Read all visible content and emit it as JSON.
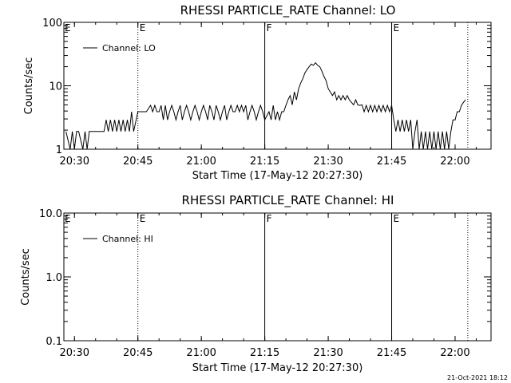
{
  "footer": {
    "timestamp": "21-Oct-2021 18:12"
  },
  "chart_data": [
    {
      "type": "line",
      "title": "RHESSI PARTICLE_RATE Channel: LO",
      "xlabel": "Start Time (17-May-12 20:27:30)",
      "ylabel": "Counts/sec",
      "yscale": "log",
      "xlim": [
        "20:27:30",
        "22:08:30"
      ],
      "ylim": [
        1,
        100
      ],
      "x_ticks": [
        "20:30",
        "20:45",
        "21:00",
        "21:15",
        "21:30",
        "21:45",
        "22:00"
      ],
      "y_ticks": [
        "1",
        "10",
        "100"
      ],
      "legend": {
        "position": "top-left",
        "entries": [
          "Channel: LO"
        ]
      },
      "event_markers": [
        {
          "time": "20:45",
          "label": "E",
          "style": "dotted"
        },
        {
          "time": "21:15",
          "label": "F",
          "style": "solid"
        },
        {
          "time": "21:45",
          "label": "E",
          "style": "solid"
        },
        {
          "time": "22:03",
          "label": "",
          "style": "dotted"
        }
      ],
      "series": [
        {
          "name": "Channel: LO",
          "points": [
            [
              "20:28",
              1.9
            ],
            [
              "20:29",
              1.0
            ],
            [
              "20:29:30",
              1.9
            ],
            [
              "20:30",
              1.0
            ],
            [
              "20:30:30",
              1.9
            ],
            [
              "20:31",
              1.9
            ],
            [
              "20:32",
              1.0
            ],
            [
              "20:32:30",
              1.9
            ],
            [
              "20:33",
              1.0
            ],
            [
              "20:33:30",
              1.9
            ],
            [
              "20:35",
              1.9
            ],
            [
              "20:37",
              1.9
            ],
            [
              "20:37:30",
              2.9
            ],
            [
              "20:38",
              1.9
            ],
            [
              "20:38:30",
              2.9
            ],
            [
              "20:39",
              1.9
            ],
            [
              "20:39:30",
              2.9
            ],
            [
              "20:40",
              1.9
            ],
            [
              "20:40:30",
              2.9
            ],
            [
              "20:41",
              1.9
            ],
            [
              "20:41:30",
              2.9
            ],
            [
              "20:42",
              1.9
            ],
            [
              "20:42:30",
              2.9
            ],
            [
              "20:43",
              1.9
            ],
            [
              "20:43:30",
              3.9
            ],
            [
              "20:44",
              1.9
            ],
            [
              "20:45",
              3.9
            ],
            [
              "20:47",
              3.9
            ],
            [
              "20:48",
              4.9
            ],
            [
              "20:48:30",
              3.9
            ],
            [
              "20:49",
              4.9
            ],
            [
              "20:49:30",
              3.9
            ],
            [
              "20:50",
              3.9
            ],
            [
              "20:50:30",
              4.9
            ],
            [
              "20:51",
              2.9
            ],
            [
              "20:51:30",
              4.9
            ],
            [
              "20:52",
              2.9
            ],
            [
              "20:52:30",
              3.9
            ],
            [
              "20:53",
              4.9
            ],
            [
              "20:53:30",
              3.9
            ],
            [
              "20:54",
              2.9
            ],
            [
              "20:54:30",
              3.9
            ],
            [
              "20:55",
              4.9
            ],
            [
              "20:55:30",
              2.9
            ],
            [
              "20:56",
              3.9
            ],
            [
              "20:56:30",
              4.9
            ],
            [
              "20:57",
              3.9
            ],
            [
              "20:57:30",
              2.9
            ],
            [
              "20:58",
              3.9
            ],
            [
              "20:58:30",
              4.9
            ],
            [
              "20:59",
              3.9
            ],
            [
              "20:59:30",
              2.9
            ],
            [
              "21:00",
              3.9
            ],
            [
              "21:00:30",
              4.9
            ],
            [
              "21:01",
              3.9
            ],
            [
              "21:01:30",
              2.9
            ],
            [
              "21:02",
              4.9
            ],
            [
              "21:02:30",
              3.9
            ],
            [
              "21:03",
              2.9
            ],
            [
              "21:03:30",
              4.9
            ],
            [
              "21:04",
              3.9
            ],
            [
              "21:04:30",
              2.9
            ],
            [
              "21:05",
              3.9
            ],
            [
              "21:05:30",
              4.9
            ],
            [
              "21:06",
              2.9
            ],
            [
              "21:06:30",
              3.9
            ],
            [
              "21:07",
              4.9
            ],
            [
              "21:07:30",
              3.9
            ],
            [
              "21:08",
              3.9
            ],
            [
              "21:08:30",
              4.9
            ],
            [
              "21:09",
              3.9
            ],
            [
              "21:09:30",
              4.9
            ],
            [
              "21:10",
              3.9
            ],
            [
              "21:10:30",
              4.9
            ],
            [
              "21:11",
              2.9
            ],
            [
              "21:11:30",
              3.9
            ],
            [
              "21:12",
              4.9
            ],
            [
              "21:12:30",
              3.9
            ],
            [
              "21:13",
              2.9
            ],
            [
              "21:13:30",
              3.9
            ],
            [
              "21:14",
              4.9
            ],
            [
              "21:14:30",
              3.9
            ],
            [
              "21:15",
              2.9
            ],
            [
              "21:16",
              3.9
            ],
            [
              "21:16:30",
              2.9
            ],
            [
              "21:17",
              4.9
            ],
            [
              "21:17:30",
              2.9
            ],
            [
              "21:18",
              3.9
            ],
            [
              "21:18:30",
              2.9
            ],
            [
              "21:19",
              3.9
            ],
            [
              "21:19:30",
              3.9
            ],
            [
              "21:20",
              4.9
            ],
            [
              "21:20:30",
              6.0
            ],
            [
              "21:21",
              7.0
            ],
            [
              "21:21:30",
              5.0
            ],
            [
              "21:22",
              8.0
            ],
            [
              "21:22:30",
              6.0
            ],
            [
              "21:23",
              9.0
            ],
            [
              "21:23:30",
              11.0
            ],
            [
              "21:24",
              13.0
            ],
            [
              "21:24:30",
              16.0
            ],
            [
              "21:25",
              18.0
            ],
            [
              "21:25:30",
              20.0
            ],
            [
              "21:26",
              22.0
            ],
            [
              "21:26:30",
              21.0
            ],
            [
              "21:27",
              23.0
            ],
            [
              "21:27:30",
              21.0
            ],
            [
              "21:28",
              20.0
            ],
            [
              "21:28:30",
              17.0
            ],
            [
              "21:29",
              14.0
            ],
            [
              "21:29:30",
              12.0
            ],
            [
              "21:30",
              9.0
            ],
            [
              "21:30:30",
              8.0
            ],
            [
              "21:31",
              7.0
            ],
            [
              "21:31:30",
              8.0
            ],
            [
              "21:32",
              6.0
            ],
            [
              "21:32:30",
              7.0
            ],
            [
              "21:33",
              6.0
            ],
            [
              "21:33:30",
              7.0
            ],
            [
              "21:34",
              6.0
            ],
            [
              "21:34:30",
              7.0
            ],
            [
              "21:35",
              6.0
            ],
            [
              "21:36",
              5.0
            ],
            [
              "21:36:30",
              6.0
            ],
            [
              "21:37",
              5.0
            ],
            [
              "21:37:30",
              4.9
            ],
            [
              "21:38",
              5.0
            ],
            [
              "21:38:30",
              3.9
            ],
            [
              "21:39",
              4.9
            ],
            [
              "21:39:30",
              3.9
            ],
            [
              "21:40",
              4.9
            ],
            [
              "21:40:30",
              3.9
            ],
            [
              "21:41",
              4.9
            ],
            [
              "21:41:30",
              3.9
            ],
            [
              "21:42",
              4.9
            ],
            [
              "21:42:30",
              3.9
            ],
            [
              "21:43",
              4.9
            ],
            [
              "21:43:30",
              3.9
            ],
            [
              "21:44",
              4.9
            ],
            [
              "21:44:30",
              3.9
            ],
            [
              "21:45",
              4.9
            ],
            [
              "21:45:30",
              2.9
            ],
            [
              "21:46",
              1.9
            ],
            [
              "21:46:30",
              2.9
            ],
            [
              "21:47",
              1.9
            ],
            [
              "21:47:30",
              2.9
            ],
            [
              "21:48",
              1.9
            ],
            [
              "21:48:30",
              2.9
            ],
            [
              "21:49",
              1.9
            ],
            [
              "21:49:30",
              2.9
            ],
            [
              "21:50",
              1.0
            ],
            [
              "21:50:30",
              1.9
            ],
            [
              "21:51",
              2.9
            ],
            [
              "21:51:30",
              1.0
            ],
            [
              "21:52",
              1.9
            ],
            [
              "21:52:30",
              1.0
            ],
            [
              "21:53",
              1.9
            ],
            [
              "21:53:30",
              1.0
            ],
            [
              "21:54",
              1.9
            ],
            [
              "21:54:30",
              1.0
            ],
            [
              "21:55",
              1.9
            ],
            [
              "21:55:30",
              1.0
            ],
            [
              "21:56",
              1.9
            ],
            [
              "21:56:30",
              1.0
            ],
            [
              "21:57",
              1.9
            ],
            [
              "21:57:30",
              1.0
            ],
            [
              "21:58",
              1.9
            ],
            [
              "21:58:30",
              1.0
            ],
            [
              "21:59",
              1.9
            ],
            [
              "21:59:30",
              2.9
            ],
            [
              "22:00",
              2.9
            ],
            [
              "22:00:30",
              3.9
            ],
            [
              "22:01",
              3.9
            ],
            [
              "22:01:30",
              4.9
            ],
            [
              "22:02",
              5.5
            ],
            [
              "22:02:30",
              6.0
            ]
          ]
        }
      ]
    },
    {
      "type": "line",
      "title": "RHESSI PARTICLE_RATE Channel: HI",
      "xlabel": "Start Time (17-May-12 20:27:30)",
      "ylabel": "Counts/sec",
      "yscale": "log",
      "xlim": [
        "20:27:30",
        "22:08:30"
      ],
      "ylim": [
        0.1,
        10
      ],
      "x_ticks": [
        "20:30",
        "20:45",
        "21:00",
        "21:15",
        "21:30",
        "21:45",
        "22:00"
      ],
      "y_ticks": [
        "0.1",
        "1.0",
        "10.0"
      ],
      "legend": {
        "position": "top-left",
        "entries": [
          "Channel: HI"
        ]
      },
      "event_markers": [
        {
          "time": "20:45",
          "label": "E",
          "style": "dotted"
        },
        {
          "time": "21:15",
          "label": "F",
          "style": "solid"
        },
        {
          "time": "21:45",
          "label": "E",
          "style": "solid"
        },
        {
          "time": "22:03",
          "label": "",
          "style": "dotted"
        }
      ],
      "series": [
        {
          "name": "Channel: HI",
          "points": []
        }
      ]
    }
  ]
}
